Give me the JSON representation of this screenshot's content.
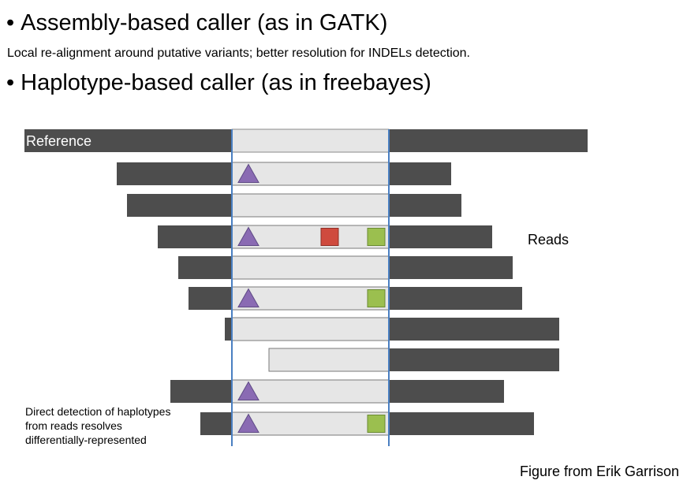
{
  "bullets": {
    "bullet_char": "•",
    "first": "Assembly-based caller (as in GATK)",
    "first_sub": "Local re-alignment around putative variants; better resolution for INDELs detection.",
    "second": "Haplotype-based caller (as in freebayes)"
  },
  "diagram": {
    "reference_label": "Reference",
    "reads_label": "Reads",
    "note_lines": [
      "Direct detection of haplotypes",
      "from reads resolves",
      "differentially-represented"
    ],
    "colors": {
      "dark_bar": "#4d4d4d",
      "window_fill": "#e6e6e6",
      "window_line": "#4a7fc1",
      "triangle": "#8a6bb3",
      "red_square": "#cf4a3e",
      "green_square": "#9bbf4f"
    },
    "reads": [
      {
        "markers": [
          "triangle"
        ]
      },
      {
        "markers": []
      },
      {
        "markers": [
          "triangle",
          "red-square",
          "green-square"
        ]
      },
      {
        "markers": []
      },
      {
        "markers": [
          "triangle",
          "green-square"
        ]
      },
      {
        "markers": []
      },
      {
        "markers": []
      },
      {
        "markers": [
          "triangle"
        ]
      },
      {
        "markers": [
          "triangle",
          "green-square"
        ]
      }
    ]
  },
  "credit": "Figure from Erik Garrison"
}
